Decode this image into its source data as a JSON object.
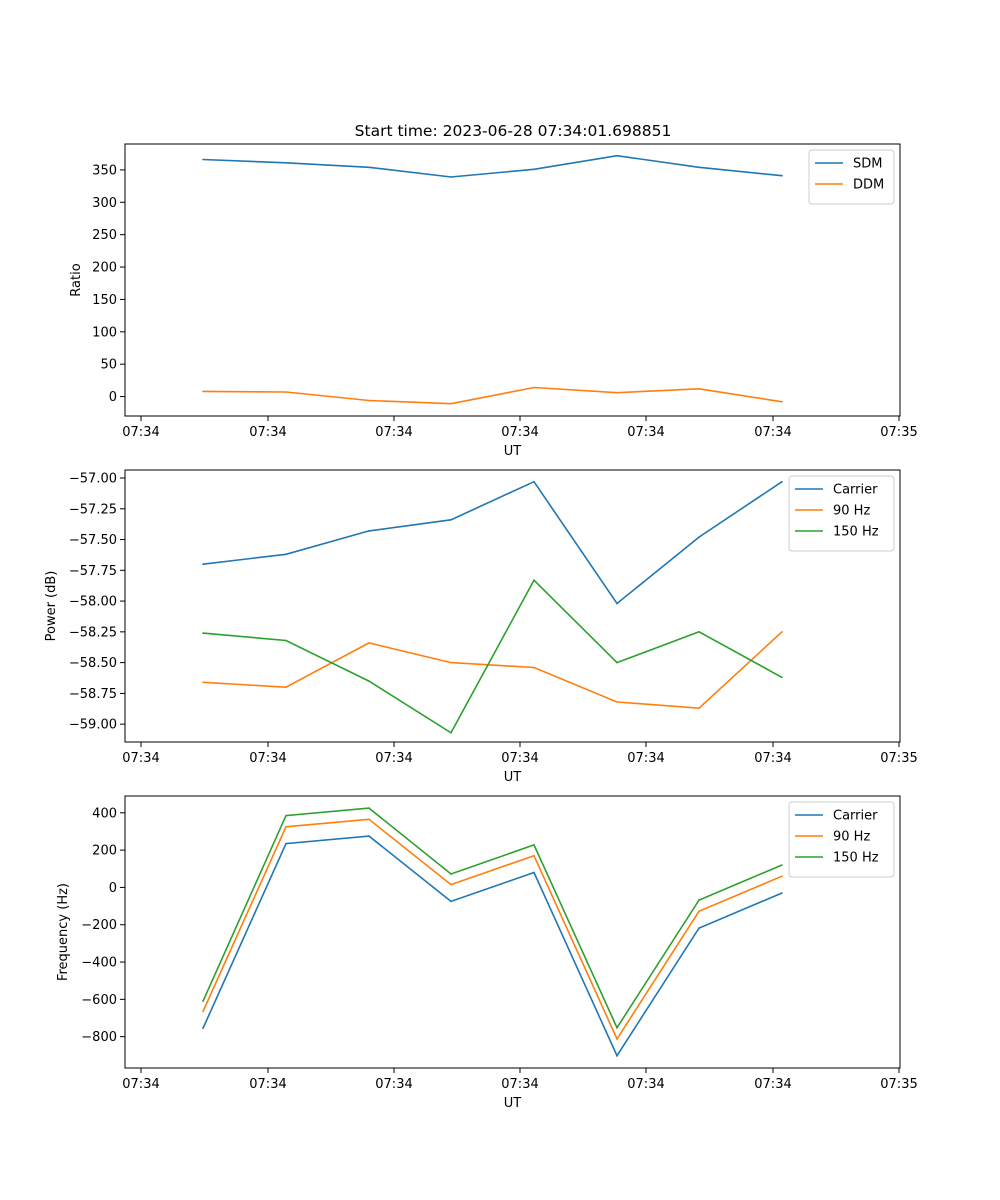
{
  "title": "Start time: 2023-06-28 07:34:01.698851",
  "chart_data": [
    {
      "type": "line",
      "ylabel": "Ratio",
      "xlabel": "UT",
      "x_tick_labels": [
        "07:34",
        "07:34",
        "07:34",
        "07:34",
        "07:34",
        "07:34",
        "07:35"
      ],
      "y_ticks": [
        0,
        50,
        100,
        150,
        200,
        250,
        300,
        350
      ],
      "y_tick_labels": [
        "0",
        "50",
        "100",
        "150",
        "200",
        "250",
        "300",
        "350"
      ],
      "ylim": [
        -30,
        390
      ],
      "legend": "top-right",
      "series": [
        {
          "name": "SDM",
          "color": "#1f77b4",
          "values": [
            366,
            361,
            354,
            339,
            351,
            372,
            354,
            341
          ]
        },
        {
          "name": "DDM",
          "color": "#ff7f0e",
          "values": [
            8,
            7,
            -6,
            -11,
            14,
            6,
            12,
            -8
          ]
        }
      ]
    },
    {
      "type": "line",
      "ylabel": "Power (dB)",
      "xlabel": "UT",
      "x_tick_labels": [
        "07:34",
        "07:34",
        "07:34",
        "07:34",
        "07:34",
        "07:34",
        "07:35"
      ],
      "y_ticks": [
        -59.0,
        -58.75,
        -58.5,
        -58.25,
        -58.0,
        -57.75,
        -57.5,
        -57.25,
        -57.0
      ],
      "y_tick_labels": [
        "−59.00",
        "−58.75",
        "−58.50",
        "−58.25",
        "−58.00",
        "−57.75",
        "−57.50",
        "−57.25",
        "−57.00"
      ],
      "ylim": [
        -59.145,
        -56.935
      ],
      "legend": "top-right",
      "series": [
        {
          "name": "Carrier",
          "color": "#1f77b4",
          "values": [
            -57.7,
            -57.62,
            -57.43,
            -57.34,
            -57.03,
            -58.02,
            -57.48,
            -57.03
          ]
        },
        {
          "name": "90 Hz",
          "color": "#ff7f0e",
          "values": [
            -58.66,
            -58.7,
            -58.34,
            -58.5,
            -58.54,
            -58.82,
            -58.87,
            -58.25
          ]
        },
        {
          "name": "150 Hz",
          "color": "#2ca02c",
          "values": [
            -58.26,
            -58.32,
            -58.65,
            -59.07,
            -57.83,
            -58.5,
            -58.25,
            -58.62
          ]
        }
      ]
    },
    {
      "type": "line",
      "ylabel": "Frequency (Hz)",
      "xlabel": "UT",
      "x_tick_labels": [
        "07:34",
        "07:34",
        "07:34",
        "07:34",
        "07:34",
        "07:34",
        "07:35"
      ],
      "y_ticks": [
        -800,
        -600,
        -400,
        -200,
        0,
        200,
        400
      ],
      "y_tick_labels": [
        "−800",
        "−600",
        "−400",
        "−200",
        "0",
        "200",
        "400"
      ],
      "ylim": [
        -968,
        490
      ],
      "legend": "top-right",
      "series": [
        {
          "name": "Carrier",
          "color": "#1f77b4",
          "values": [
            -755,
            235,
            275,
            -75,
            80,
            -902,
            -218,
            -30
          ]
        },
        {
          "name": "90 Hz",
          "color": "#ff7f0e",
          "values": [
            -665,
            325,
            365,
            15,
            170,
            -812,
            -128,
            60
          ]
        },
        {
          "name": "150 Hz",
          "color": "#2ca02c",
          "values": [
            -610,
            385,
            425,
            72,
            228,
            -752,
            -68,
            120
          ]
        }
      ]
    }
  ]
}
